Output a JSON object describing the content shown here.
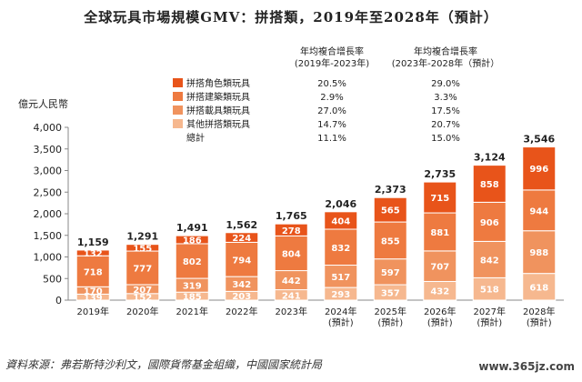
{
  "title": "全球玩具市場規模GMV：拼搭類，2019年至2028年（預計）",
  "source": "資料來源：弗若斯特沙利文，國際貨幣基金組織，中國國家統計局",
  "watermark": "www.365jz.com",
  "colors": {
    "role": "#E8541A",
    "building": "#EE7A40",
    "vehicle": "#F0935E",
    "other": "#F6B88F"
  },
  "chart_data": {
    "type": "bar",
    "stacked": true,
    "ylabel": "億元人民幣",
    "ylim": [
      0,
      4000
    ],
    "yticks": [
      "0",
      "500",
      "1,000",
      "1,500",
      "2,000",
      "2,500",
      "3,000",
      "3,500",
      "4,000"
    ],
    "ytick_values": [
      0,
      500,
      1000,
      1500,
      2000,
      2500,
      3000,
      3500,
      4000
    ],
    "categories": [
      "2019年",
      "2020年",
      "2021年",
      "2022年",
      "2023年",
      "2024年\n(預計)",
      "2025年\n(預計)",
      "2026年\n(預計)",
      "2027年\n(預計)",
      "2028年\n(預計)"
    ],
    "totals": [
      "1,159",
      "1,291",
      "1,491",
      "1,562",
      "1,765",
      "2,046",
      "2,373",
      "2,735",
      "3,124",
      "3,546"
    ],
    "series": [
      {
        "name": "其他拼搭類玩具",
        "color_key": "other",
        "values": [
          139,
          152,
          185,
          203,
          241,
          293,
          357,
          432,
          518,
          618
        ]
      },
      {
        "name": "拼搭載具類玩具",
        "color_key": "vehicle",
        "values": [
          170,
          207,
          319,
          342,
          442,
          517,
          597,
          707,
          842,
          988
        ]
      },
      {
        "name": "拼搭建築類玩具",
        "color_key": "building",
        "values": [
          718,
          777,
          802,
          794,
          804,
          832,
          855,
          881,
          906,
          944
        ]
      },
      {
        "name": "拼搭角色類玩具",
        "color_key": "role",
        "values": [
          132,
          155,
          186,
          224,
          278,
          404,
          565,
          715,
          858,
          996
        ]
      }
    ],
    "legend": {
      "header_col1": [
        "年均複合增長率",
        "(2019年-2023年)"
      ],
      "header_col2": [
        "年均複合增長率",
        "(2023年-2028年（預計）"
      ],
      "rows": [
        {
          "label": "拼搭角色類玩具",
          "color_key": "role",
          "cagr1": "20.5%",
          "cagr2": "29.0%"
        },
        {
          "label": "拼搭建築類玩具",
          "color_key": "building",
          "cagr1": "2.9%",
          "cagr2": "3.3%"
        },
        {
          "label": "拼搭載具類玩具",
          "color_key": "vehicle",
          "cagr1": "27.0%",
          "cagr2": "17.5%"
        },
        {
          "label": "其他拼搭類玩具",
          "color_key": "other",
          "cagr1": "14.7%",
          "cagr2": "20.7%"
        },
        {
          "label": "總計",
          "color_key": "",
          "cagr1": "11.1%",
          "cagr2": "15.0%"
        }
      ]
    }
  }
}
